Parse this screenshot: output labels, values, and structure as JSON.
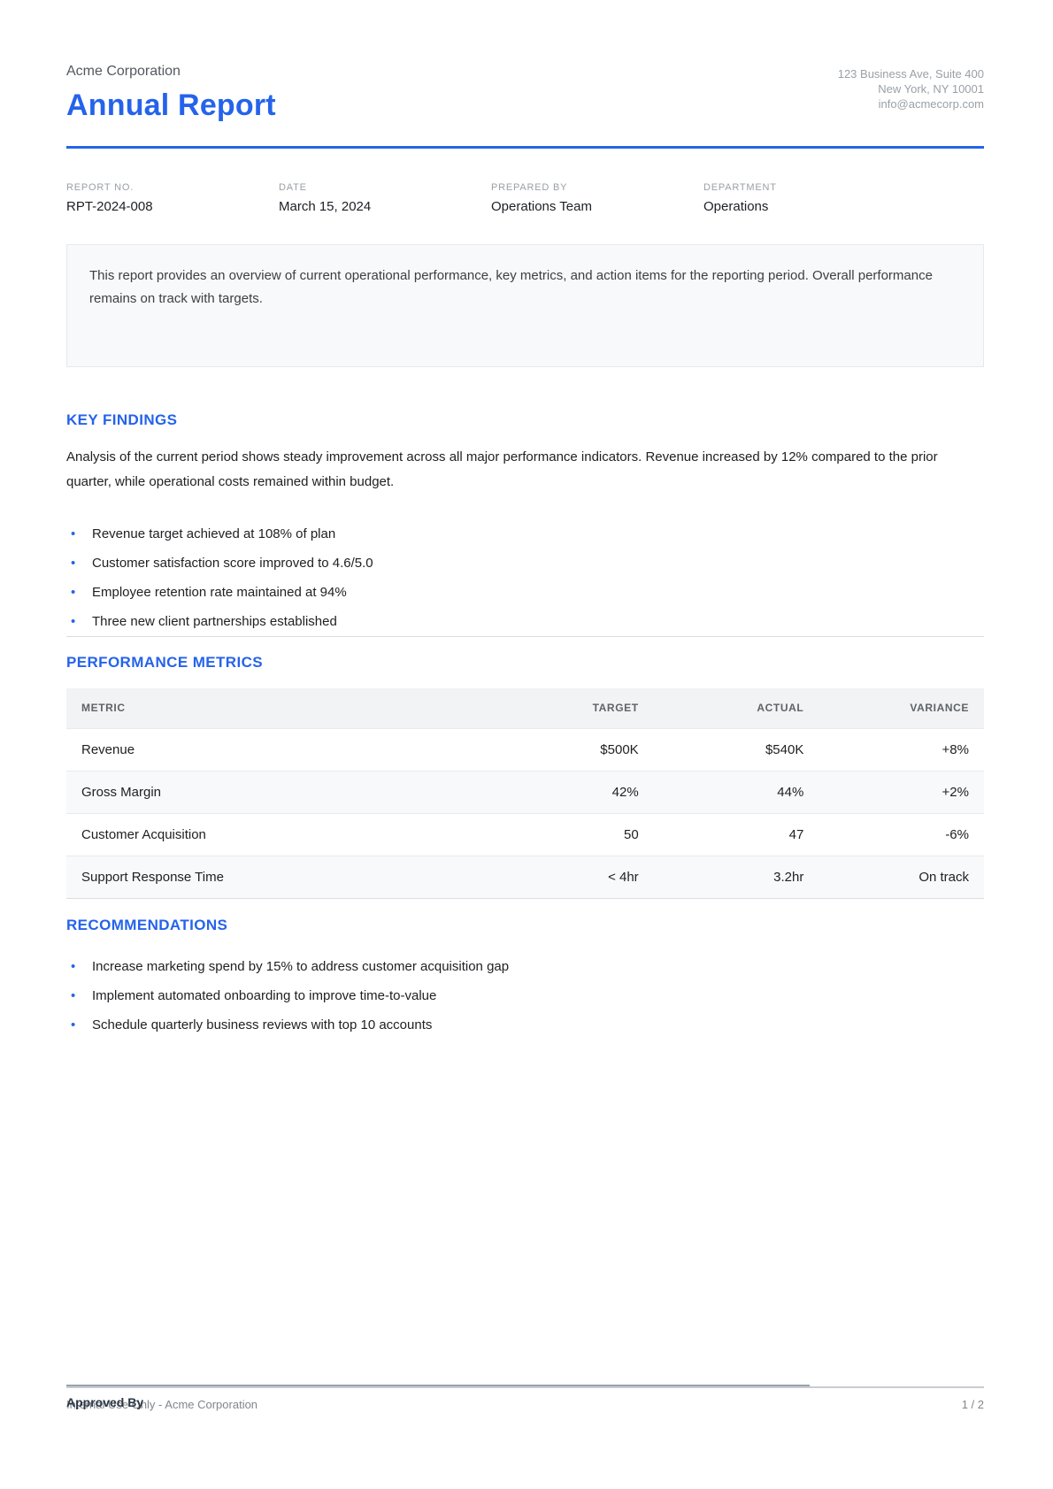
{
  "colors": {
    "accent": "#2563eb"
  },
  "header": {
    "company": "Acme Corporation",
    "title": "Annual Report",
    "address_line1": "123 Business Ave, Suite 400",
    "address_line2": "New York, NY 10001",
    "address_line3": "info@acmecorp.com"
  },
  "meta": [
    {
      "label": "REPORT NO.",
      "value": "RPT-2024-008"
    },
    {
      "label": "DATE",
      "value": "March 15, 2024"
    },
    {
      "label": "PREPARED BY",
      "value": "Operations Team"
    },
    {
      "label": "DEPARTMENT",
      "value": "Operations"
    }
  ],
  "summary": "This report provides an overview of current operational performance, key metrics, and action items for the reporting period. Overall performance remains on track with targets.",
  "key_findings": {
    "heading": "KEY FINDINGS",
    "paragraph": "Analysis of the current period shows steady improvement across all major performance indicators. Revenue increased by 12% compared to the prior quarter, while operational costs remained within budget.",
    "bullets": [
      "Revenue target achieved at 108% of plan",
      "Customer satisfaction score improved to 4.6/5.0",
      "Employee retention rate maintained at 94%",
      "Three new client partnerships established"
    ]
  },
  "performance_metrics": {
    "heading": "PERFORMANCE METRICS",
    "table": {
      "columns": [
        "METRIC",
        "TARGET",
        "ACTUAL",
        "VARIANCE"
      ],
      "rows": [
        [
          "Revenue",
          "$500K",
          "$540K",
          "+8%"
        ],
        [
          "Gross Margin",
          "42%",
          "44%",
          "+2%"
        ],
        [
          "Customer Acquisition",
          "50",
          "47",
          "-6%"
        ],
        [
          "Support Response Time",
          "< 4hr",
          "3.2hr",
          "On track"
        ]
      ]
    }
  },
  "recommendations": {
    "heading": "RECOMMENDATIONS",
    "bullets": [
      "Increase marketing spend by 15% to address customer acquisition gap",
      "Implement automated onboarding to improve time-to-value",
      "Schedule quarterly business reviews with top 10 accounts"
    ]
  },
  "signature": {
    "label": "Approved By"
  },
  "footer": {
    "left": "Internal Use Only - Acme Corporation",
    "page": "1 / 2"
  }
}
